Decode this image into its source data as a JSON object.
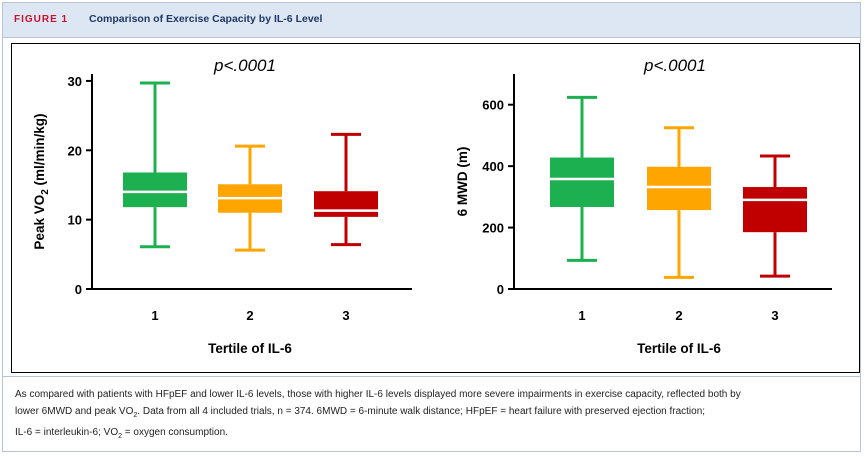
{
  "figure": {
    "label": "FIGURE 1",
    "title": "Comparison of Exercise Capacity by IL-6 Level"
  },
  "caption_parts": {
    "line1": "As compared with patients with HFpEF and lower IL-6 levels, those with higher IL-6 levels displayed more severe impairments in exercise capacity, reflected both by",
    "line2a": "lower 6MWD and peak VO",
    "line2sub": "2",
    "line2b": ". Data from all 4 included trials, n = 374. 6MWD = 6-minute walk distance; HFpEF = heart failure with preserved ejection fraction;",
    "line3a": "IL-6 = interleukin-6; VO",
    "line3sub": "2",
    "line3b": " = oxygen consumption."
  },
  "colors": {
    "tertile1": "#1db050",
    "tertile2": "#ffa500",
    "tertile3": "#c00000"
  },
  "chart_data": [
    {
      "type": "box",
      "annotation": "p<.0001",
      "ylabel_main": "Peak VO",
      "ylabel_sub": "2",
      "ylabel_tail": " (ml/min/kg)",
      "xlabel": "Tertile of IL-6",
      "categories": [
        "1",
        "2",
        "3"
      ],
      "yticks": [
        "0",
        "10",
        "20",
        "30"
      ],
      "ylim": [
        0,
        31
      ],
      "boxes": [
        {
          "category": "1",
          "min": 6.1,
          "q1": 11.8,
          "median": 14.0,
          "q3": 16.8,
          "max": 29.7
        },
        {
          "category": "2",
          "min": 5.6,
          "q1": 11.0,
          "median": 13.1,
          "q3": 15.1,
          "max": 20.6
        },
        {
          "category": "3",
          "min": 6.4,
          "q1": 10.4,
          "median": 11.3,
          "q3": 14.1,
          "max": 22.3
        }
      ]
    },
    {
      "type": "box",
      "annotation": "p<.0001",
      "ylabel_main": "6 MWD (m)",
      "ylabel_sub": "",
      "ylabel_tail": "",
      "xlabel": "Tertile of IL-6",
      "categories": [
        "1",
        "2",
        "3"
      ],
      "yticks": [
        "0",
        "200",
        "400",
        "600"
      ],
      "ylim": [
        0,
        700
      ],
      "boxes": [
        {
          "category": "1",
          "min": 93,
          "q1": 267,
          "median": 358,
          "q3": 428,
          "max": 624
        },
        {
          "category": "2",
          "min": 38,
          "q1": 257,
          "median": 332,
          "q3": 398,
          "max": 525
        },
        {
          "category": "3",
          "min": 42,
          "q1": 185,
          "median": 290,
          "q3": 332,
          "max": 433
        }
      ]
    }
  ]
}
